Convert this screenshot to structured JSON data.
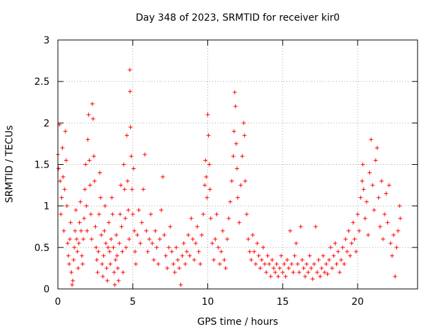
{
  "chart_data": {
    "type": "scatter",
    "title": "Day 348 of 2023, SRMTID for receiver kir0",
    "xlabel": "GPS time / hours",
    "ylabel": "SRMTID / TECUs",
    "xlim": [
      0,
      24
    ],
    "ylim": [
      0,
      3
    ],
    "xticks": [
      0,
      5,
      10,
      15,
      20
    ],
    "yticks": [
      0,
      0.5,
      1,
      1.5,
      2,
      2.5,
      3
    ],
    "xtick_labels": [
      "0",
      "5",
      "10",
      "15",
      "20"
    ],
    "ytick_labels": [
      "0",
      "0.5",
      "1",
      "1.5",
      "2",
      "2.5",
      "3"
    ],
    "grid": true,
    "marker": "+",
    "color": "#ff0000",
    "series": [
      {
        "name": "SRMTID",
        "points": [
          [
            0.0,
            1.62
          ],
          [
            0.05,
            1.45
          ],
          [
            0.1,
            1.98
          ],
          [
            0.15,
            1.3
          ],
          [
            0.2,
            0.9
          ],
          [
            0.25,
            1.1
          ],
          [
            0.3,
            1.7
          ],
          [
            0.35,
            1.35
          ],
          [
            0.4,
            0.7
          ],
          [
            0.45,
            1.2
          ],
          [
            0.5,
            1.9
          ],
          [
            0.55,
            1.55
          ],
          [
            0.6,
            1.0
          ],
          [
            0.65,
            0.55
          ],
          [
            0.7,
            0.4
          ],
          [
            0.75,
            0.3
          ],
          [
            0.8,
            0.6
          ],
          [
            0.85,
            0.8
          ],
          [
            0.9,
            0.2
          ],
          [
            0.95,
            0.05
          ],
          [
            1.0,
            0.1
          ],
          [
            1.05,
            0.35
          ],
          [
            1.1,
            0.5
          ],
          [
            1.15,
            0.7
          ],
          [
            1.2,
            0.95
          ],
          [
            1.25,
            0.6
          ],
          [
            1.3,
            0.45
          ],
          [
            1.35,
            0.25
          ],
          [
            1.4,
            0.55
          ],
          [
            1.45,
            0.8
          ],
          [
            1.5,
            1.05
          ],
          [
            1.55,
            0.7
          ],
          [
            1.6,
            0.4
          ],
          [
            1.65,
            0.3
          ],
          [
            1.7,
            0.6
          ],
          [
            1.75,
            0.85
          ],
          [
            1.8,
            1.2
          ],
          [
            1.85,
            1.5
          ],
          [
            1.9,
            1.0
          ],
          [
            1.95,
            0.7
          ],
          [
            2.0,
            1.8
          ],
          [
            2.05,
            2.1
          ],
          [
            2.1,
            1.55
          ],
          [
            2.15,
            1.25
          ],
          [
            2.2,
            0.9
          ],
          [
            2.25,
            0.6
          ],
          [
            2.3,
            2.23
          ],
          [
            2.35,
            2.05
          ],
          [
            2.4,
            1.6
          ],
          [
            2.45,
            1.3
          ],
          [
            2.5,
            0.75
          ],
          [
            2.55,
            0.5
          ],
          [
            2.6,
            0.35
          ],
          [
            2.65,
            0.2
          ],
          [
            2.7,
            0.45
          ],
          [
            2.75,
            0.9
          ],
          [
            2.8,
            1.4
          ],
          [
            2.85,
            1.1
          ],
          [
            2.9,
            0.65
          ],
          [
            2.95,
            0.3
          ],
          [
            3.0,
            0.15
          ],
          [
            3.05,
            0.4
          ],
          [
            3.1,
            0.7
          ],
          [
            3.15,
            1.0
          ],
          [
            3.2,
            0.55
          ],
          [
            3.25,
            0.25
          ],
          [
            3.3,
            0.1
          ],
          [
            3.35,
            0.5
          ],
          [
            3.4,
            0.8
          ],
          [
            3.45,
            0.45
          ],
          [
            3.5,
            0.3
          ],
          [
            3.55,
            0.6
          ],
          [
            3.6,
            1.1
          ],
          [
            3.65,
            0.9
          ],
          [
            3.7,
            0.5
          ],
          [
            3.75,
            0.2
          ],
          [
            3.8,
            0.05
          ],
          [
            3.85,
            0.35
          ],
          [
            3.9,
            0.65
          ],
          [
            3.95,
            0.4
          ],
          [
            4.0,
            0.25
          ],
          [
            4.05,
            0.1
          ],
          [
            4.1,
            0.55
          ],
          [
            4.15,
            0.9
          ],
          [
            4.2,
            1.25
          ],
          [
            4.25,
            0.75
          ],
          [
            4.3,
            0.45
          ],
          [
            4.35,
            0.2
          ],
          [
            4.4,
            1.5
          ],
          [
            4.45,
            1.2
          ],
          [
            4.5,
            0.85
          ],
          [
            4.55,
            0.5
          ],
          [
            4.6,
            1.85
          ],
          [
            4.65,
            1.3
          ],
          [
            4.7,
            0.95
          ],
          [
            4.75,
            0.6
          ],
          [
            4.8,
            2.64
          ],
          [
            4.82,
            2.38
          ],
          [
            4.85,
            1.95
          ],
          [
            4.9,
            1.6
          ],
          [
            4.95,
            1.2
          ],
          [
            5.0,
            0.9
          ],
          [
            5.05,
            1.45
          ],
          [
            5.1,
            0.7
          ],
          [
            5.15,
            0.45
          ],
          [
            5.2,
            0.3
          ],
          [
            5.3,
            0.65
          ],
          [
            5.4,
            0.95
          ],
          [
            5.5,
            0.55
          ],
          [
            5.6,
            0.8
          ],
          [
            5.7,
            1.2
          ],
          [
            5.8,
            1.62
          ],
          [
            5.9,
            0.7
          ],
          [
            6.0,
            0.45
          ],
          [
            6.1,
            0.6
          ],
          [
            6.2,
            0.9
          ],
          [
            6.3,
            0.55
          ],
          [
            6.4,
            0.35
          ],
          [
            6.5,
            0.7
          ],
          [
            6.6,
            0.5
          ],
          [
            6.7,
            0.3
          ],
          [
            6.8,
            0.6
          ],
          [
            6.9,
            0.95
          ],
          [
            7.0,
            1.35
          ],
          [
            7.1,
            0.65
          ],
          [
            7.2,
            0.4
          ],
          [
            7.3,
            0.25
          ],
          [
            7.4,
            0.5
          ],
          [
            7.5,
            0.75
          ],
          [
            7.6,
            0.45
          ],
          [
            7.7,
            0.3
          ],
          [
            7.8,
            0.2
          ],
          [
            7.9,
            0.5
          ],
          [
            8.0,
            0.35
          ],
          [
            8.1,
            0.25
          ],
          [
            8.2,
            0.05
          ],
          [
            8.3,
            0.4
          ],
          [
            8.4,
            0.55
          ],
          [
            8.5,
            0.3
          ],
          [
            8.6,
            0.45
          ],
          [
            8.7,
            0.65
          ],
          [
            8.8,
            0.4
          ],
          [
            8.9,
            0.85
          ],
          [
            9.0,
            0.6
          ],
          [
            9.1,
            0.35
          ],
          [
            9.2,
            0.55
          ],
          [
            9.3,
            0.75
          ],
          [
            9.4,
            0.45
          ],
          [
            9.5,
            0.3
          ],
          [
            9.6,
            0.65
          ],
          [
            9.7,
            0.9
          ],
          [
            9.8,
            1.25
          ],
          [
            9.85,
            1.55
          ],
          [
            9.9,
            1.35
          ],
          [
            9.95,
            1.1
          ],
          [
            10.0,
            2.1
          ],
          [
            10.05,
            1.85
          ],
          [
            10.1,
            1.5
          ],
          [
            10.15,
            1.2
          ],
          [
            10.2,
            0.85
          ],
          [
            10.3,
            0.55
          ],
          [
            10.4,
            0.35
          ],
          [
            10.5,
            0.6
          ],
          [
            10.6,
            0.9
          ],
          [
            10.7,
            0.5
          ],
          [
            10.8,
            0.3
          ],
          [
            10.9,
            0.45
          ],
          [
            11.0,
            0.7
          ],
          [
            11.1,
            0.35
          ],
          [
            11.2,
            0.25
          ],
          [
            11.3,
            0.6
          ],
          [
            11.4,
            0.85
          ],
          [
            11.5,
            1.05
          ],
          [
            11.6,
            1.3
          ],
          [
            11.7,
            1.6
          ],
          [
            11.75,
            1.9
          ],
          [
            11.8,
            2.37
          ],
          [
            11.85,
            2.2
          ],
          [
            11.9,
            1.75
          ],
          [
            11.95,
            1.45
          ],
          [
            12.0,
            1.1
          ],
          [
            12.1,
            0.8
          ],
          [
            12.2,
            1.25
          ],
          [
            12.3,
            1.6
          ],
          [
            12.4,
            2.0
          ],
          [
            12.45,
            1.85
          ],
          [
            12.5,
            1.3
          ],
          [
            12.6,
            0.9
          ],
          [
            12.7,
            0.6
          ],
          [
            12.8,
            0.45
          ],
          [
            12.9,
            0.35
          ],
          [
            13.0,
            0.65
          ],
          [
            13.1,
            0.45
          ],
          [
            13.2,
            0.3
          ],
          [
            13.3,
            0.55
          ],
          [
            13.4,
            0.4
          ],
          [
            13.5,
            0.25
          ],
          [
            13.6,
            0.35
          ],
          [
            13.7,
            0.5
          ],
          [
            13.8,
            0.3
          ],
          [
            13.9,
            0.2
          ],
          [
            14.0,
            0.4
          ],
          [
            14.1,
            0.3
          ],
          [
            14.2,
            0.15
          ],
          [
            14.3,
            0.35
          ],
          [
            14.4,
            0.25
          ],
          [
            14.5,
            0.2
          ],
          [
            14.6,
            0.3
          ],
          [
            14.7,
            0.15
          ],
          [
            14.8,
            0.25
          ],
          [
            14.9,
            0.4
          ],
          [
            15.0,
            0.2
          ],
          [
            15.1,
            0.3
          ],
          [
            15.2,
            0.15
          ],
          [
            15.3,
            0.35
          ],
          [
            15.4,
            0.25
          ],
          [
            15.5,
            0.7
          ],
          [
            15.6,
            0.3
          ],
          [
            15.7,
            0.2
          ],
          [
            15.8,
            0.4
          ],
          [
            15.9,
            0.55
          ],
          [
            16.0,
            0.3
          ],
          [
            16.1,
            0.2
          ],
          [
            16.2,
            0.75
          ],
          [
            16.3,
            0.35
          ],
          [
            16.4,
            0.25
          ],
          [
            16.5,
            0.15
          ],
          [
            16.6,
            0.3
          ],
          [
            16.7,
            0.2
          ],
          [
            16.8,
            0.4
          ],
          [
            16.9,
            0.25
          ],
          [
            17.0,
            0.12
          ],
          [
            17.1,
            0.3
          ],
          [
            17.2,
            0.75
          ],
          [
            17.3,
            0.2
          ],
          [
            17.4,
            0.35
          ],
          [
            17.5,
            0.15
          ],
          [
            17.6,
            0.25
          ],
          [
            17.7,
            0.4
          ],
          [
            17.8,
            0.2
          ],
          [
            17.9,
            0.3
          ],
          [
            18.0,
            0.18
          ],
          [
            18.1,
            0.35
          ],
          [
            18.2,
            0.5
          ],
          [
            18.3,
            0.25
          ],
          [
            18.4,
            0.4
          ],
          [
            18.5,
            0.55
          ],
          [
            18.6,
            0.3
          ],
          [
            18.7,
            0.45
          ],
          [
            18.8,
            0.2
          ],
          [
            18.9,
            0.35
          ],
          [
            19.0,
            0.5
          ],
          [
            19.1,
            0.3
          ],
          [
            19.2,
            0.6
          ],
          [
            19.3,
            0.45
          ],
          [
            19.4,
            0.7
          ],
          [
            19.5,
            0.4
          ],
          [
            19.6,
            0.55
          ],
          [
            19.7,
            0.8
          ],
          [
            19.8,
            0.6
          ],
          [
            19.9,
            0.45
          ],
          [
            20.0,
            0.9
          ],
          [
            20.1,
            0.7
          ],
          [
            20.2,
            1.1
          ],
          [
            20.3,
            1.3
          ],
          [
            20.35,
            1.5
          ],
          [
            20.4,
            1.2
          ],
          [
            20.5,
            0.85
          ],
          [
            20.6,
            1.05
          ],
          [
            20.7,
            0.65
          ],
          [
            20.8,
            1.4
          ],
          [
            20.9,
            1.8
          ],
          [
            21.0,
            1.25
          ],
          [
            21.1,
            0.95
          ],
          [
            21.2,
            1.55
          ],
          [
            21.3,
            1.7
          ],
          [
            21.4,
            1.1
          ],
          [
            21.5,
            0.75
          ],
          [
            21.6,
            1.3
          ],
          [
            21.7,
            0.6
          ],
          [
            21.8,
            0.9
          ],
          [
            21.9,
            1.15
          ],
          [
            22.0,
            0.8
          ],
          [
            22.1,
            1.25
          ],
          [
            22.2,
            0.55
          ],
          [
            22.3,
            0.4
          ],
          [
            22.4,
            0.65
          ],
          [
            22.5,
            0.15
          ],
          [
            22.6,
            0.5
          ],
          [
            22.7,
            0.7
          ],
          [
            22.8,
            1.0
          ],
          [
            22.85,
            0.85
          ]
        ]
      }
    ]
  }
}
